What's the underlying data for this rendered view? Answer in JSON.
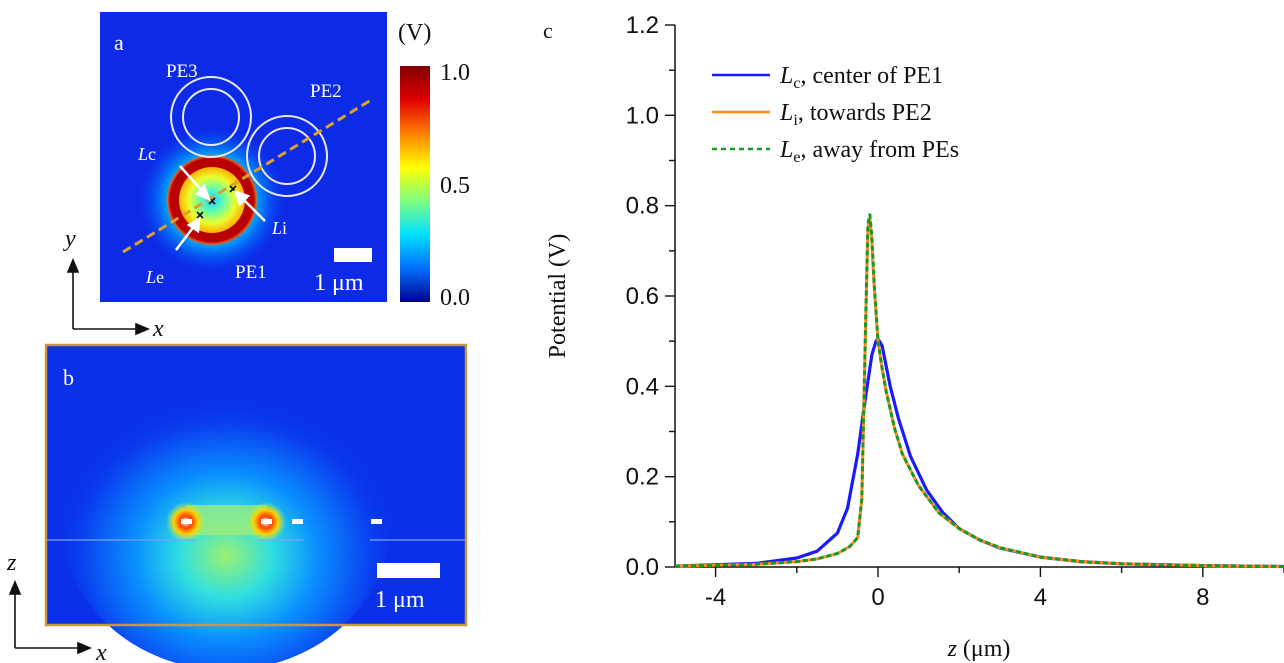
{
  "panel_a": {
    "label": "a",
    "pe_labels": [
      "PE1",
      "PE2",
      "PE3"
    ],
    "line_labels": {
      "c": "L",
      "c_sub": "c",
      "i": "L",
      "i_sub": "i",
      "e": "L",
      "e_sub": "e"
    },
    "scalebar_label": "1 μm",
    "colorbar": {
      "unit": "(V)",
      "ticks": [
        "1.0",
        "0.5",
        "0.0"
      ],
      "colors": [
        "#00008f",
        "#0070ff",
        "#00e0ff",
        "#80ff80",
        "#ffff00",
        "#ff8000",
        "#e00000",
        "#7f0000"
      ]
    },
    "axes": {
      "vertical": "y",
      "horizontal": "x"
    }
  },
  "panel_b": {
    "label": "b",
    "scalebar_label": "1 μm",
    "axes": {
      "vertical": "z",
      "horizontal": "x"
    }
  },
  "panel_c": {
    "label": "c"
  },
  "chart_data": {
    "type": "line",
    "xlabel": "z (μm)",
    "xlabel_var": "z",
    "xlabel_unit": "(μm)",
    "ylabel": "Potential (V)",
    "xlim": [
      -5,
      10
    ],
    "ylim": [
      0,
      1.2
    ],
    "xticks": [
      -4,
      0,
      4,
      8
    ],
    "xtick_labels": [
      "-4",
      "0",
      "4",
      "8"
    ],
    "yticks": [
      0.0,
      0.2,
      0.4,
      0.6,
      0.8,
      1.0,
      1.2
    ],
    "ytick_labels": [
      "0.0",
      "0.2",
      "0.4",
      "0.6",
      "0.8",
      "1.0",
      "1.2"
    ],
    "legend_position": "top-left",
    "series": [
      {
        "name": "Lc, center of PE1",
        "legend_var": "L",
        "legend_sub": "c",
        "legend_text": ", center of PE1",
        "color": "#1a1aff",
        "dash": "solid",
        "x": [
          -5,
          -3,
          -2,
          -1.5,
          -1,
          -0.75,
          -0.5,
          -0.3,
          -0.15,
          -0.05,
          0,
          0.1,
          0.3,
          0.5,
          0.8,
          1.2,
          1.6,
          2,
          2.5,
          3,
          4,
          5,
          6,
          8,
          10
        ],
        "y": [
          0.002,
          0.008,
          0.02,
          0.035,
          0.075,
          0.13,
          0.25,
          0.38,
          0.47,
          0.5,
          0.505,
          0.49,
          0.4,
          0.33,
          0.245,
          0.17,
          0.12,
          0.085,
          0.06,
          0.042,
          0.022,
          0.012,
          0.007,
          0.003,
          0.001
        ]
      },
      {
        "name": "Li, towards PE2",
        "legend_var": "L",
        "legend_sub": "i",
        "legend_text": ", towards PE2",
        "color": "#ff8c1a",
        "dash": "solid",
        "x": [
          -5,
          -3,
          -2,
          -1.5,
          -1,
          -0.7,
          -0.5,
          -0.4,
          -0.3,
          -0.25,
          -0.2,
          -0.15,
          -0.1,
          0,
          0.1,
          0.2,
          0.4,
          0.6,
          1,
          1.5,
          2,
          2.5,
          3,
          4,
          5,
          6,
          8,
          10
        ],
        "y": [
          0.002,
          0.006,
          0.012,
          0.018,
          0.03,
          0.045,
          0.065,
          0.15,
          0.55,
          0.75,
          0.77,
          0.72,
          0.63,
          0.5,
          0.44,
          0.39,
          0.31,
          0.25,
          0.18,
          0.12,
          0.085,
          0.06,
          0.043,
          0.022,
          0.012,
          0.007,
          0.003,
          0.001
        ]
      },
      {
        "name": "Le, away from PEs",
        "legend_var": "L",
        "legend_sub": "e",
        "legend_text": ", away from PEs",
        "color": "#159a2a",
        "dash": "dashed",
        "x": [
          -5,
          -3,
          -2,
          -1.5,
          -1,
          -0.7,
          -0.5,
          -0.4,
          -0.3,
          -0.25,
          -0.2,
          -0.15,
          -0.1,
          0,
          0.1,
          0.2,
          0.4,
          0.6,
          1,
          1.5,
          2,
          2.5,
          3,
          4,
          5,
          6,
          8,
          10
        ],
        "y": [
          0.002,
          0.006,
          0.012,
          0.018,
          0.03,
          0.045,
          0.065,
          0.15,
          0.56,
          0.76,
          0.78,
          0.73,
          0.64,
          0.5,
          0.44,
          0.39,
          0.31,
          0.25,
          0.18,
          0.12,
          0.085,
          0.06,
          0.043,
          0.022,
          0.012,
          0.007,
          0.003,
          0.001
        ]
      }
    ]
  }
}
